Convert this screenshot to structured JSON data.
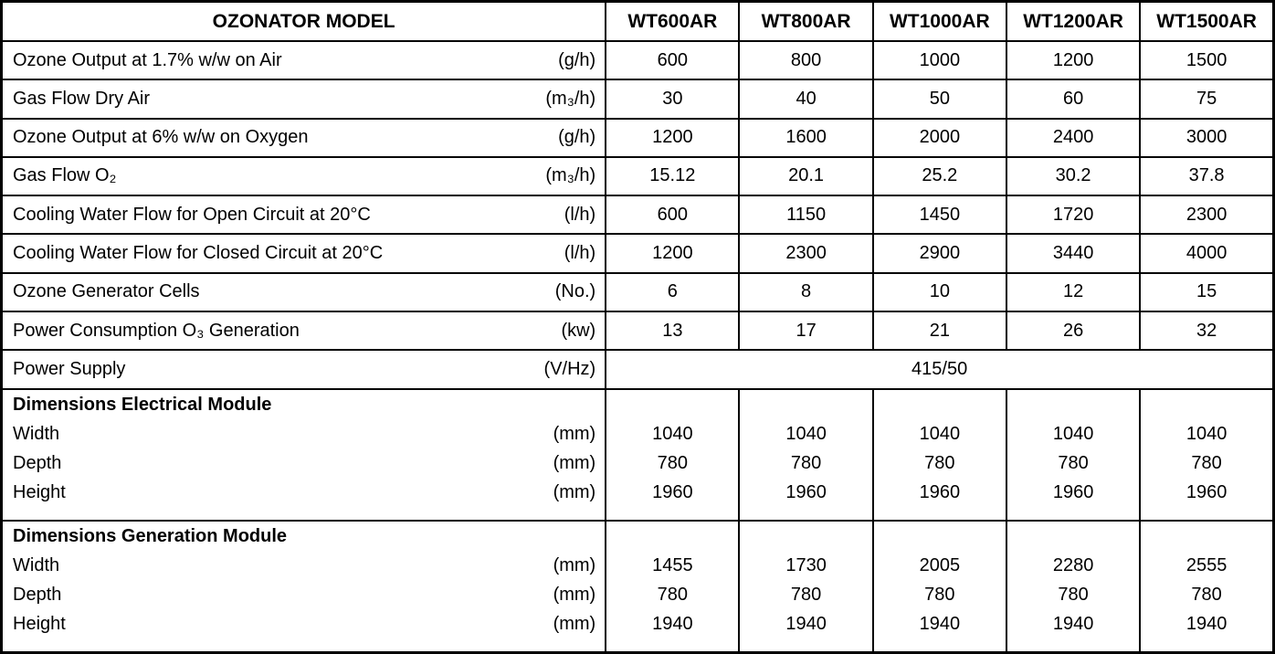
{
  "table": {
    "corner_header": "OZONATOR MODEL",
    "models": [
      "WT600AR",
      "WT800AR",
      "WT1000AR",
      "WT1200AR",
      "WT1500AR"
    ],
    "rows": [
      {
        "label": "Ozone Output at 1.7% w/w on Air",
        "unit": "(g/h)",
        "values": [
          "600",
          "800",
          "1000",
          "1200",
          "1500"
        ]
      },
      {
        "label": "Gas Flow Dry Air",
        "unit": "(m₃/h)",
        "values": [
          "30",
          "40",
          "50",
          "60",
          "75"
        ]
      },
      {
        "label": "Ozone Output at 6% w/w on Oxygen",
        "unit": "(g/h)",
        "values": [
          "1200",
          "1600",
          "2000",
          "2400",
          "3000"
        ]
      },
      {
        "label": "Gas Flow O₂",
        "unit": "(m₃/h)",
        "values": [
          "15.12",
          "20.1",
          "25.2",
          "30.2",
          "37.8"
        ]
      },
      {
        "label": "Cooling Water Flow for Open Circuit at 20°C",
        "unit": "(l/h)",
        "values": [
          "600",
          "1150",
          "1450",
          "1720",
          "2300"
        ]
      },
      {
        "label": "Cooling Water Flow for Closed Circuit at 20°C",
        "unit": "(l/h)",
        "values": [
          "1200",
          "2300",
          "2900",
          "3440",
          "4000"
        ]
      },
      {
        "label": "Ozone Generator Cells",
        "unit": "(No.)",
        "values": [
          "6",
          "8",
          "10",
          "12",
          "15"
        ]
      },
      {
        "label": "Power Consumption O₃ Generation",
        "unit": "(kw)",
        "values": [
          "13",
          "17",
          "21",
          "26",
          "32"
        ]
      }
    ],
    "power_supply": {
      "label": "Power Supply",
      "unit": "(V/Hz)",
      "value": "415/50"
    },
    "sections": [
      {
        "title": "Dimensions Electrical Module",
        "rows": [
          {
            "label": "Width",
            "unit": "(mm)",
            "values": [
              "1040",
              "1040",
              "1040",
              "1040",
              "1040"
            ]
          },
          {
            "label": "Depth",
            "unit": "(mm)",
            "values": [
              "780",
              "780",
              "780",
              "780",
              "780"
            ]
          },
          {
            "label": "Height",
            "unit": "(mm)",
            "values": [
              "1960",
              "1960",
              "1960",
              "1960",
              "1960"
            ]
          }
        ]
      },
      {
        "title": "Dimensions Generation Module",
        "rows": [
          {
            "label": "Width",
            "unit": "(mm)",
            "values": [
              "1455",
              "1730",
              "2005",
              "2280",
              "2555"
            ]
          },
          {
            "label": "Depth",
            "unit": "(mm)",
            "values": [
              "780",
              "780",
              "780",
              "780",
              "780"
            ]
          },
          {
            "label": "Height",
            "unit": "(mm)",
            "values": [
              "1940",
              "1940",
              "1940",
              "1940",
              "1940"
            ]
          }
        ]
      }
    ],
    "colors": {
      "border": "#000000",
      "background": "#ffffff",
      "text": "#000000"
    }
  }
}
